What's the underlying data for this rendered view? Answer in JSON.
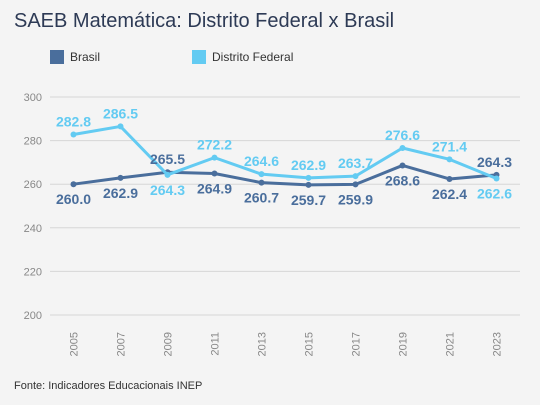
{
  "title": "SAEB Matemática: Distrito Federal x Brasil",
  "source": "Fonte: Indicadores Educacionais INEP",
  "colors": {
    "brasil": "#4a6e9c",
    "df": "#63cbf2",
    "grid": "#d6d6d6",
    "axis_text": "#888888"
  },
  "chart_data": {
    "type": "line",
    "title": "SAEB Matemática: Distrito Federal x Brasil",
    "xlabel": "",
    "ylabel": "",
    "x": [
      "2005",
      "2007",
      "2009",
      "2011",
      "2013",
      "2015",
      "2017",
      "2019",
      "2021",
      "2023"
    ],
    "ylim": [
      200,
      300
    ],
    "yticks": [
      200,
      220,
      240,
      260,
      280,
      300
    ],
    "grid": true,
    "legend_position": "top-left",
    "series": [
      {
        "name": "Brasil",
        "color": "#4a6e9c",
        "values": [
          260.0,
          262.9,
          265.5,
          264.9,
          260.7,
          259.7,
          259.9,
          268.6,
          262.4,
          264.3
        ]
      },
      {
        "name": "Distrito Federal",
        "color": "#63cbf2",
        "values": [
          282.8,
          286.5,
          264.3,
          272.2,
          264.6,
          262.9,
          263.7,
          276.6,
          271.4,
          262.6
        ]
      }
    ]
  }
}
